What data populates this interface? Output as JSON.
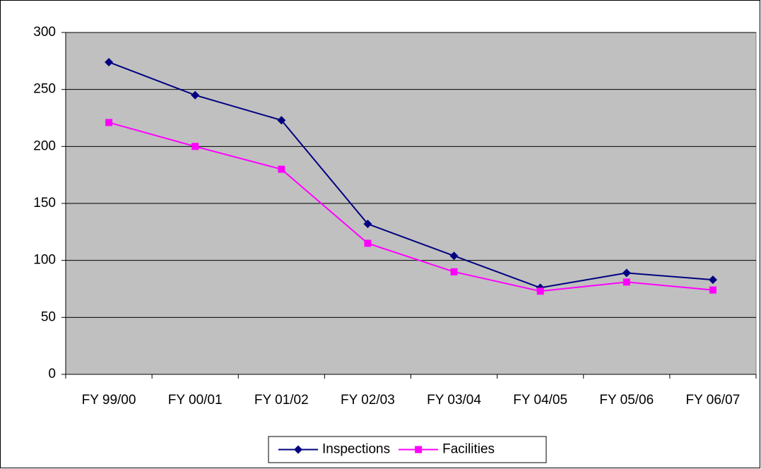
{
  "chart_data": {
    "type": "line",
    "categories": [
      "FY 99/00",
      "FY 00/01",
      "FY 01/02",
      "FY 02/03",
      "FY 03/04",
      "FY 04/05",
      "FY 05/06",
      "FY 06/07"
    ],
    "series": [
      {
        "name": "Inspections",
        "color": "#000080",
        "marker": "diamond",
        "values": [
          274,
          245,
          223,
          132,
          104,
          76,
          89,
          83
        ]
      },
      {
        "name": "Facilities",
        "color": "#ff00ff",
        "marker": "square",
        "values": [
          221,
          200,
          180,
          115,
          90,
          73,
          81,
          74
        ]
      }
    ],
    "ylim": [
      0,
      300
    ],
    "yticks": [
      0,
      50,
      100,
      150,
      200,
      250,
      300
    ],
    "grid": true,
    "legend": "bottom"
  }
}
